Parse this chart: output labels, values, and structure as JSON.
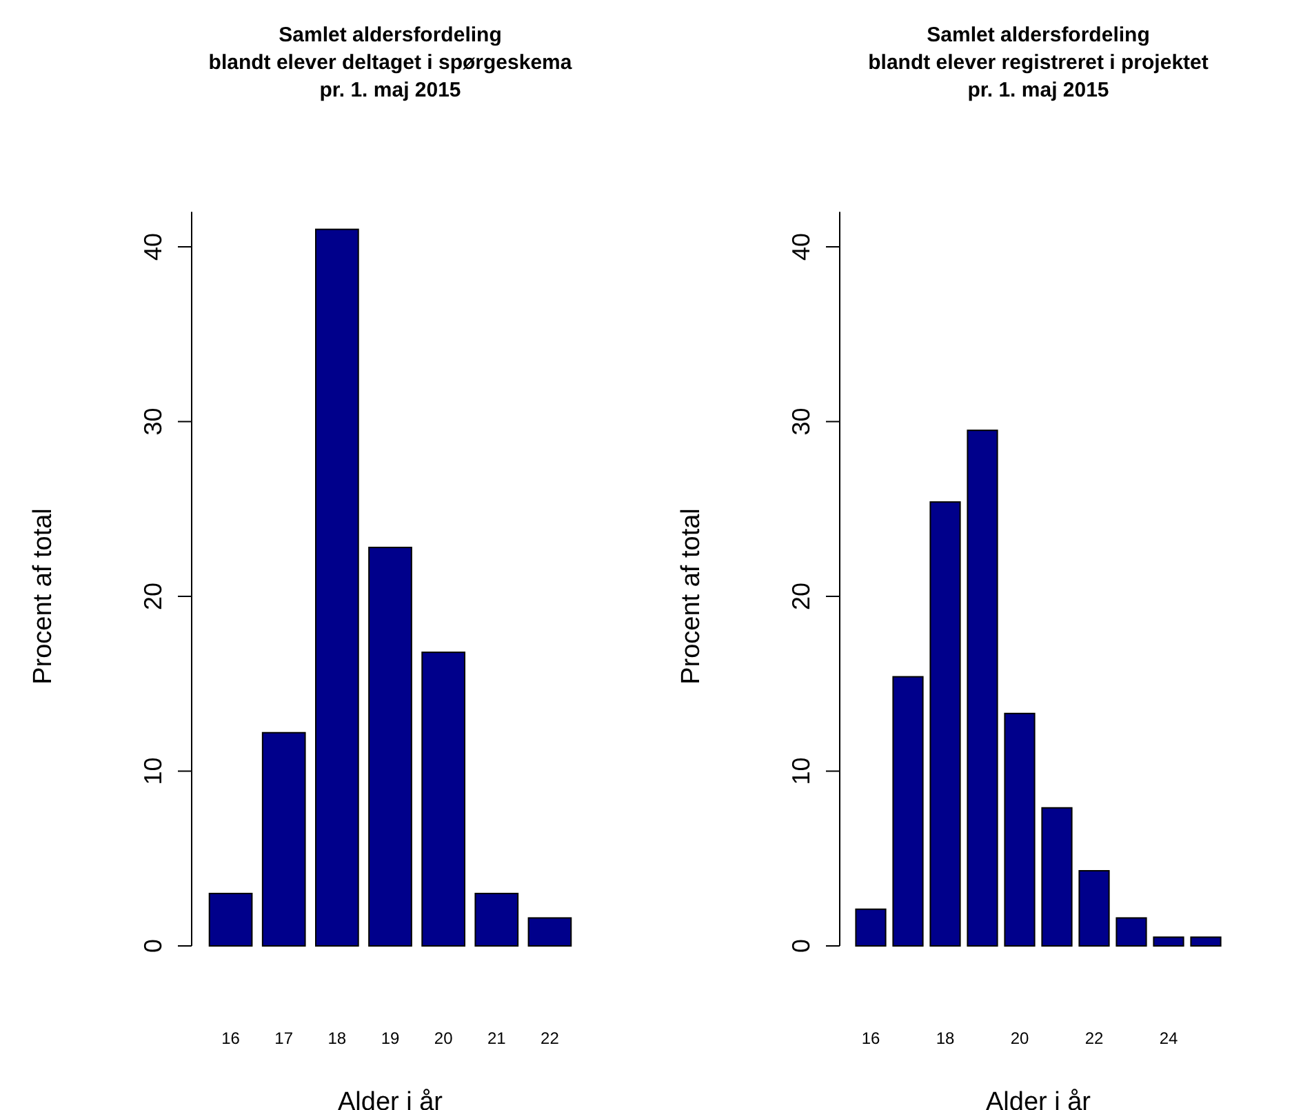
{
  "chart_data": [
    {
      "type": "bar",
      "title": "Samlet aldersfordeling\nblandt elever deltaget i spørgeskema\npr. 1. maj 2015",
      "xlabel": "Alder i år",
      "ylabel": "Procent af total",
      "categories": [
        "16",
        "17",
        "18",
        "19",
        "20",
        "21",
        "22"
      ],
      "values": [
        3.0,
        12.2,
        41.0,
        22.8,
        16.8,
        3.0,
        1.6
      ],
      "color": "#00008b",
      "ylim": [
        0,
        42
      ],
      "yticks": [
        0,
        10,
        20,
        30,
        40
      ]
    },
    {
      "type": "bar",
      "title": "Samlet aldersfordeling\nblandt elever registreret i projektet\npr. 1. maj 2015",
      "xlabel": "Alder i år",
      "ylabel": "Procent af total",
      "categories": [
        "16",
        null,
        "18",
        null,
        "20",
        null,
        "22",
        null,
        "24",
        null
      ],
      "values": [
        2.1,
        15.4,
        25.4,
        29.5,
        13.3,
        7.9,
        4.3,
        1.6,
        0.5,
        0.5
      ],
      "color": "#00008b",
      "ylim": [
        0,
        42
      ],
      "yticks": [
        0,
        10,
        20,
        30,
        40
      ]
    }
  ]
}
